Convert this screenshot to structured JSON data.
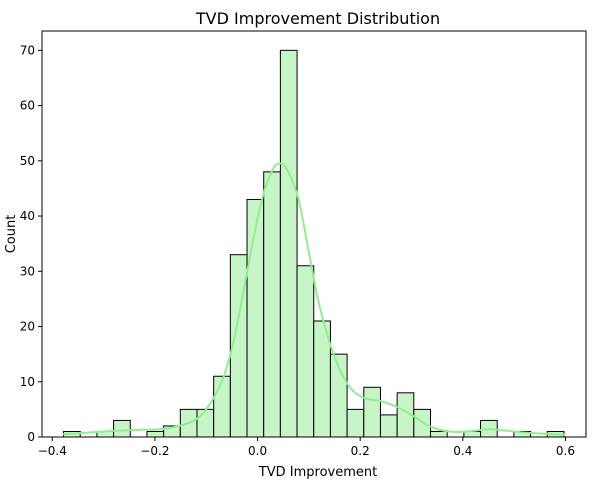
{
  "chart_data": {
    "type": "bar",
    "title": "TVD Improvement Distribution",
    "xlabel": "TVD Improvement",
    "ylabel": "Count",
    "xlim": [
      -0.42,
      0.64
    ],
    "ylim": [
      0,
      73.5
    ],
    "xticks": [
      -0.4,
      -0.2,
      0.0,
      0.2,
      0.4,
      0.6
    ],
    "xtick_labels": [
      "−0.4",
      "−0.2",
      "0.0",
      "0.2",
      "0.4",
      "0.6"
    ],
    "yticks": [
      0,
      10,
      20,
      30,
      40,
      50,
      60,
      70
    ],
    "ytick_labels": [
      "0",
      "10",
      "20",
      "30",
      "40",
      "50",
      "60",
      "70"
    ],
    "bin_edges": [
      -0.378,
      -0.3455,
      -0.313,
      -0.2805,
      -0.248,
      -0.2155,
      -0.183,
      -0.1505,
      -0.118,
      -0.0855,
      -0.053,
      -0.0205,
      0.012,
      0.0445,
      0.077,
      0.1095,
      0.142,
      0.1745,
      0.207,
      0.2395,
      0.272,
      0.3045,
      0.337,
      0.3695,
      0.402,
      0.4345,
      0.467,
      0.4995,
      0.532,
      0.5645,
      0.597
    ],
    "counts": [
      1,
      0,
      1,
      3,
      0,
      1,
      2,
      5,
      5,
      11,
      33,
      43,
      48,
      70,
      31,
      21,
      15,
      5,
      9,
      4,
      8,
      5,
      1,
      0,
      1,
      3,
      0,
      1,
      0,
      1
    ],
    "kde": {
      "x": [
        -0.38,
        -0.33,
        -0.28,
        -0.23,
        -0.18,
        -0.13,
        -0.1,
        -0.07,
        -0.05,
        -0.03,
        -0.01,
        0.01,
        0.03,
        0.045,
        0.06,
        0.08,
        0.1,
        0.12,
        0.15,
        0.18,
        0.21,
        0.24,
        0.27,
        0.3,
        0.33,
        0.36,
        0.39,
        0.42,
        0.45,
        0.48,
        0.52,
        0.56,
        0.6
      ],
      "y": [
        0.5,
        0.8,
        1.1,
        1.3,
        1.5,
        2.7,
        5,
        10,
        16,
        25,
        35,
        43.5,
        48.5,
        49.5,
        48,
        43,
        33.5,
        24,
        14.5,
        9,
        7,
        6.5,
        5.5,
        4,
        2.2,
        1.2,
        0.9,
        1.1,
        1.4,
        1.2,
        0.8,
        0.6,
        0.4
      ]
    },
    "bar_color": "#c7f5c7",
    "kde_color": "#90ee90",
    "grid": false
  }
}
